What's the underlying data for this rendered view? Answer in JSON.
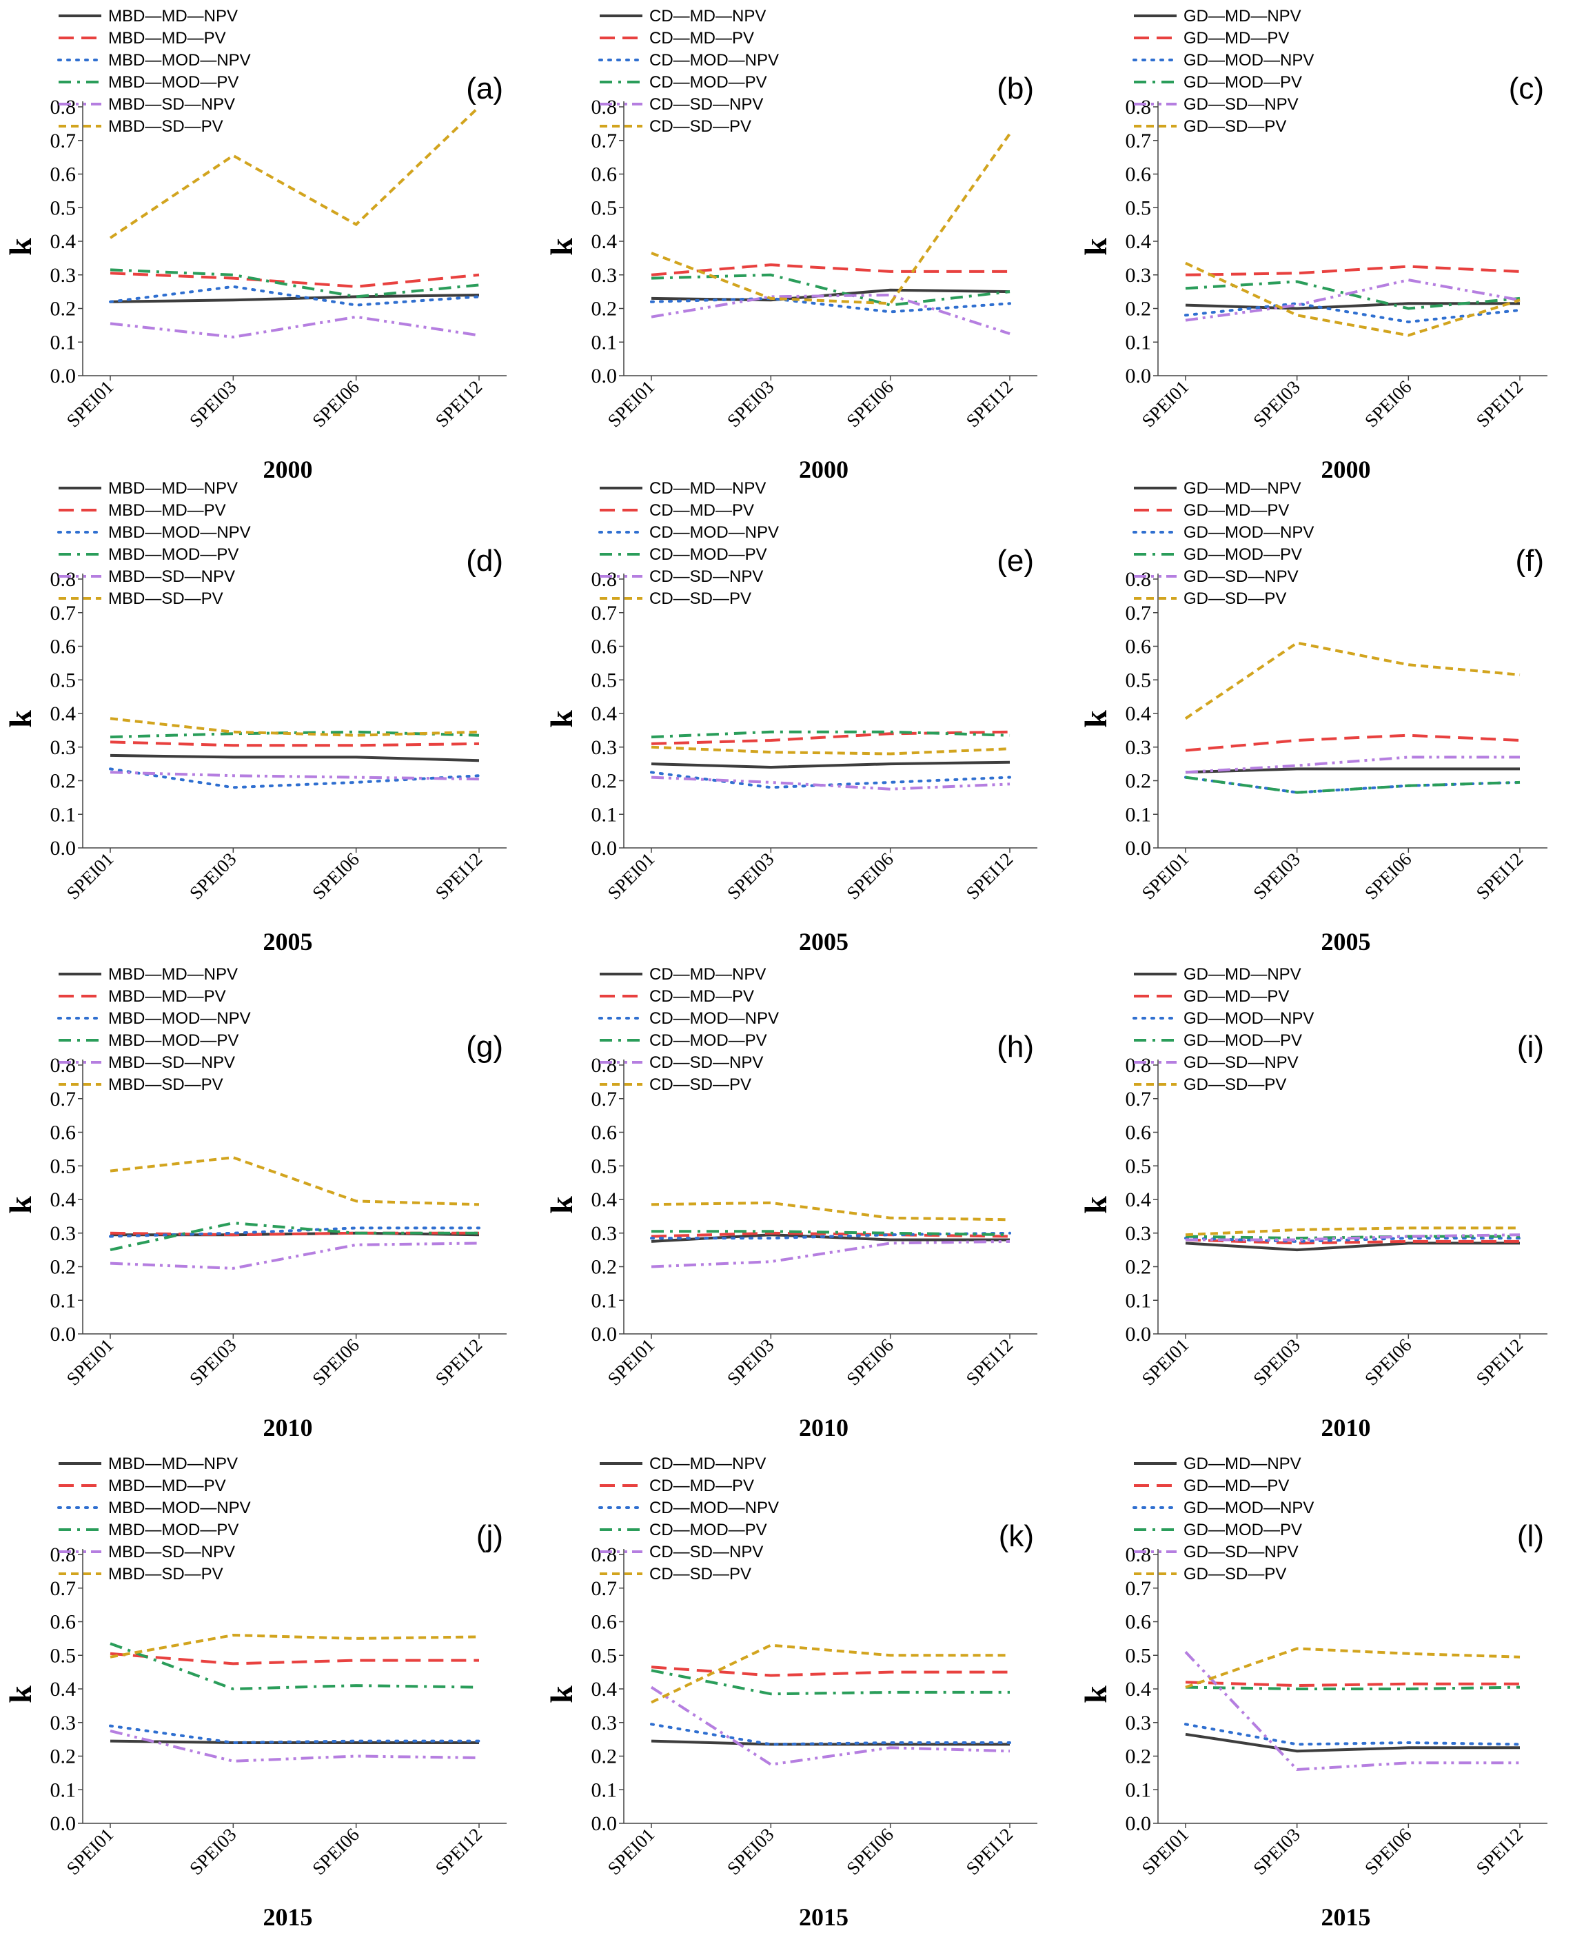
{
  "series_styles": [
    {
      "key": "MD-NPV",
      "color": "#3d3d3d",
      "dash": "solid"
    },
    {
      "key": "MD-PV",
      "color": "#e8413f",
      "dash": "longdash"
    },
    {
      "key": "MOD-NPV",
      "color": "#2f6fd0",
      "dash": "dot"
    },
    {
      "key": "MOD-PV",
      "color": "#2a9d5a",
      "dash": "dashdot"
    },
    {
      "key": "SD-NPV",
      "color": "#b57ee0",
      "dash": "dashdotdot"
    },
    {
      "key": "SD-PV",
      "color": "#d2a41e",
      "dash": "shortdash"
    }
  ],
  "chart_data": [
    {
      "id": "a",
      "type": "line",
      "panel_label": "(a)",
      "year": "2000",
      "ylabel": "k",
      "categories": [
        "SPEI01",
        "SPEI03",
        "SPEI06",
        "SPEI12"
      ],
      "yticks": [
        "0.0",
        "0.1",
        "0.2",
        "0.3",
        "0.4",
        "0.5",
        "0.6",
        "0.7",
        "0.8"
      ],
      "ylim": [
        0,
        0.8
      ],
      "series": [
        {
          "name": "MBD—MD—NPV",
          "values": [
            0.22,
            0.225,
            0.235,
            0.24
          ]
        },
        {
          "name": "MBD—MD—PV",
          "values": [
            0.305,
            0.29,
            0.265,
            0.3
          ]
        },
        {
          "name": "MBD—MOD—NPV",
          "values": [
            0.22,
            0.265,
            0.21,
            0.235
          ]
        },
        {
          "name": "MBD—MOD—PV",
          "values": [
            0.315,
            0.3,
            0.235,
            0.27
          ]
        },
        {
          "name": "MBD—SD—NPV",
          "values": [
            0.155,
            0.115,
            0.175,
            0.12
          ]
        },
        {
          "name": "MBD—SD—PV",
          "values": [
            0.41,
            0.655,
            0.45,
            0.8
          ]
        }
      ]
    },
    {
      "id": "b",
      "type": "line",
      "panel_label": "(b)",
      "year": "2000",
      "ylabel": "k",
      "categories": [
        "SPEI01",
        "SPEI03",
        "SPEI06",
        "SPEI12"
      ],
      "yticks": [
        "0.0",
        "0.1",
        "0.2",
        "0.3",
        "0.4",
        "0.5",
        "0.6",
        "0.7",
        "0.8"
      ],
      "ylim": [
        0,
        0.8
      ],
      "series": [
        {
          "name": "CD—MD—NPV",
          "values": [
            0.23,
            0.225,
            0.255,
            0.25
          ]
        },
        {
          "name": "CD—MD—PV",
          "values": [
            0.3,
            0.33,
            0.31,
            0.31
          ]
        },
        {
          "name": "CD—MOD—NPV",
          "values": [
            0.22,
            0.23,
            0.19,
            0.215
          ]
        },
        {
          "name": "CD—MOD—PV",
          "values": [
            0.29,
            0.3,
            0.21,
            0.25
          ]
        },
        {
          "name": "CD—SD—NPV",
          "values": [
            0.175,
            0.235,
            0.24,
            0.125
          ]
        },
        {
          "name": "CD—SD—PV",
          "values": [
            0.365,
            0.23,
            0.215,
            0.72
          ]
        }
      ]
    },
    {
      "id": "c",
      "type": "line",
      "panel_label": "(c)",
      "year": "2000",
      "ylabel": "k",
      "categories": [
        "SPEI01",
        "SPEI03",
        "SPEI06",
        "SPEI12"
      ],
      "yticks": [
        "0.0",
        "0.1",
        "0.2",
        "0.3",
        "0.4",
        "0.5",
        "0.6",
        "0.7",
        "0.8"
      ],
      "ylim": [
        0,
        0.8
      ],
      "series": [
        {
          "name": "GD—MD—NPV",
          "values": [
            0.21,
            0.2,
            0.215,
            0.215
          ]
        },
        {
          "name": "GD—MD—PV",
          "values": [
            0.3,
            0.305,
            0.325,
            0.31
          ]
        },
        {
          "name": "GD—MOD—NPV",
          "values": [
            0.18,
            0.215,
            0.16,
            0.195
          ]
        },
        {
          "name": "GD—MOD—PV",
          "values": [
            0.26,
            0.28,
            0.2,
            0.23
          ]
        },
        {
          "name": "GD—SD—NPV",
          "values": [
            0.165,
            0.21,
            0.285,
            0.225
          ]
        },
        {
          "name": "GD—SD—PV",
          "values": [
            0.335,
            0.18,
            0.12,
            0.225
          ]
        }
      ]
    },
    {
      "id": "d",
      "type": "line",
      "panel_label": "(d)",
      "year": "2005",
      "ylabel": "k",
      "categories": [
        "SPEI01",
        "SPEI03",
        "SPEI06",
        "SPEI12"
      ],
      "yticks": [
        "0.0",
        "0.1",
        "0.2",
        "0.3",
        "0.4",
        "0.5",
        "0.6",
        "0.7",
        "0.8"
      ],
      "ylim": [
        0,
        0.8
      ],
      "series": [
        {
          "name": "MBD—MD—NPV",
          "values": [
            0.275,
            0.27,
            0.27,
            0.26
          ]
        },
        {
          "name": "MBD—MD—PV",
          "values": [
            0.315,
            0.305,
            0.305,
            0.31
          ]
        },
        {
          "name": "MBD—MOD—NPV",
          "values": [
            0.235,
            0.18,
            0.195,
            0.215
          ]
        },
        {
          "name": "MBD—MOD—PV",
          "values": [
            0.33,
            0.34,
            0.345,
            0.335
          ]
        },
        {
          "name": "MBD—SD—NPV",
          "values": [
            0.225,
            0.215,
            0.21,
            0.205
          ]
        },
        {
          "name": "MBD—SD—PV",
          "values": [
            0.385,
            0.345,
            0.335,
            0.345
          ]
        }
      ]
    },
    {
      "id": "e",
      "type": "line",
      "panel_label": "(e)",
      "year": "2005",
      "ylabel": "k",
      "categories": [
        "SPEI01",
        "SPEI03",
        "SPEI06",
        "SPEI12"
      ],
      "yticks": [
        "0.0",
        "0.1",
        "0.2",
        "0.3",
        "0.4",
        "0.5",
        "0.6",
        "0.7",
        "0.8"
      ],
      "ylim": [
        0,
        0.8
      ],
      "series": [
        {
          "name": "CD—MD—NPV",
          "values": [
            0.25,
            0.24,
            0.25,
            0.255
          ]
        },
        {
          "name": "CD—MD—PV",
          "values": [
            0.31,
            0.32,
            0.34,
            0.345
          ]
        },
        {
          "name": "CD—MOD—NPV",
          "values": [
            0.225,
            0.18,
            0.195,
            0.21
          ]
        },
        {
          "name": "CD—MOD—PV",
          "values": [
            0.33,
            0.345,
            0.345,
            0.335
          ]
        },
        {
          "name": "CD—SD—NPV",
          "values": [
            0.21,
            0.195,
            0.175,
            0.19
          ]
        },
        {
          "name": "CD—SD—PV",
          "values": [
            0.3,
            0.285,
            0.28,
            0.295
          ]
        }
      ]
    },
    {
      "id": "f",
      "type": "line",
      "panel_label": "(f)",
      "year": "2005",
      "ylabel": "k",
      "categories": [
        "SPEI01",
        "SPEI03",
        "SPEI06",
        "SPEI12"
      ],
      "yticks": [
        "0.0",
        "0.1",
        "0.2",
        "0.3",
        "0.4",
        "0.5",
        "0.6",
        "0.7",
        "0.8"
      ],
      "ylim": [
        0,
        0.8
      ],
      "series": [
        {
          "name": "GD—MD—NPV",
          "values": [
            0.225,
            0.235,
            0.235,
            0.235
          ]
        },
        {
          "name": "GD—MD—PV",
          "values": [
            0.29,
            0.32,
            0.335,
            0.32
          ]
        },
        {
          "name": "GD—MOD—NPV",
          "values": [
            0.21,
            0.165,
            0.185,
            0.195
          ]
        },
        {
          "name": "GD—MOD—PV",
          "values": [
            0.21,
            0.165,
            0.185,
            0.195
          ]
        },
        {
          "name": "GD—SD—NPV",
          "values": [
            0.225,
            0.245,
            0.27,
            0.27
          ]
        },
        {
          "name": "GD—SD—PV",
          "values": [
            0.385,
            0.61,
            0.545,
            0.515
          ]
        }
      ]
    },
    {
      "id": "g",
      "type": "line",
      "panel_label": "(g)",
      "year": "2010",
      "ylabel": "k",
      "categories": [
        "SPEI01",
        "SPEI03",
        "SPEI06",
        "SPEI12"
      ],
      "yticks": [
        "0.0",
        "0.1",
        "0.2",
        "0.3",
        "0.4",
        "0.5",
        "0.6",
        "0.7",
        "0.8"
      ],
      "ylim": [
        0,
        0.8
      ],
      "series": [
        {
          "name": "MBD—MD—NPV",
          "values": [
            0.295,
            0.295,
            0.3,
            0.295
          ]
        },
        {
          "name": "MBD—MD—PV",
          "values": [
            0.3,
            0.295,
            0.3,
            0.3
          ]
        },
        {
          "name": "MBD—MOD—NPV",
          "values": [
            0.29,
            0.3,
            0.315,
            0.315
          ]
        },
        {
          "name": "MBD—MOD—PV",
          "values": [
            0.25,
            0.33,
            0.3,
            0.3
          ]
        },
        {
          "name": "MBD—SD—NPV",
          "values": [
            0.21,
            0.195,
            0.265,
            0.27
          ]
        },
        {
          "name": "MBD—SD—PV",
          "values": [
            0.485,
            0.525,
            0.395,
            0.385
          ]
        }
      ]
    },
    {
      "id": "h",
      "type": "line",
      "panel_label": "(h)",
      "year": "2010",
      "ylabel": "k",
      "categories": [
        "SPEI01",
        "SPEI03",
        "SPEI06",
        "SPEI12"
      ],
      "yticks": [
        "0.0",
        "0.1",
        "0.2",
        "0.3",
        "0.4",
        "0.5",
        "0.6",
        "0.7",
        "0.8"
      ],
      "ylim": [
        0,
        0.8
      ],
      "series": [
        {
          "name": "CD—MD—NPV",
          "values": [
            0.275,
            0.295,
            0.28,
            0.28
          ]
        },
        {
          "name": "CD—MD—PV",
          "values": [
            0.29,
            0.3,
            0.295,
            0.29
          ]
        },
        {
          "name": "CD—MOD—NPV",
          "values": [
            0.285,
            0.285,
            0.295,
            0.3
          ]
        },
        {
          "name": "CD—MOD—PV",
          "values": [
            0.305,
            0.305,
            0.3,
            0.295
          ]
        },
        {
          "name": "CD—SD—NPV",
          "values": [
            0.2,
            0.215,
            0.27,
            0.275
          ]
        },
        {
          "name": "CD—SD—PV",
          "values": [
            0.385,
            0.39,
            0.345,
            0.34
          ]
        }
      ]
    },
    {
      "id": "i",
      "type": "line",
      "panel_label": "(i)",
      "year": "2010",
      "ylabel": "k",
      "categories": [
        "SPEI01",
        "SPEI03",
        "SPEI06",
        "SPEI12"
      ],
      "yticks": [
        "0.0",
        "0.1",
        "0.2",
        "0.3",
        "0.4",
        "0.5",
        "0.6",
        "0.7",
        "0.8"
      ],
      "ylim": [
        0,
        0.8
      ],
      "series": [
        {
          "name": "GD—MD—NPV",
          "values": [
            0.27,
            0.25,
            0.27,
            0.27
          ]
        },
        {
          "name": "GD—MD—PV",
          "values": [
            0.28,
            0.27,
            0.275,
            0.275
          ]
        },
        {
          "name": "GD—MOD—NPV",
          "values": [
            0.285,
            0.275,
            0.285,
            0.285
          ]
        },
        {
          "name": "GD—MOD—PV",
          "values": [
            0.29,
            0.285,
            0.29,
            0.29
          ]
        },
        {
          "name": "GD—SD—NPV",
          "values": [
            0.28,
            0.28,
            0.29,
            0.295
          ]
        },
        {
          "name": "GD—SD—PV",
          "values": [
            0.295,
            0.31,
            0.315,
            0.315
          ]
        }
      ]
    },
    {
      "id": "j",
      "type": "line",
      "panel_label": "(j)",
      "year": "2015",
      "ylabel": "k",
      "categories": [
        "SPEI01",
        "SPEI03",
        "SPEI06",
        "SPEI12"
      ],
      "yticks": [
        "0.0",
        "0.1",
        "0.2",
        "0.3",
        "0.4",
        "0.5",
        "0.6",
        "0.7",
        "0.8"
      ],
      "ylim": [
        0,
        0.8
      ],
      "series": [
        {
          "name": "MBD—MD—NPV",
          "values": [
            0.245,
            0.24,
            0.24,
            0.24
          ]
        },
        {
          "name": "MBD—MD—PV",
          "values": [
            0.505,
            0.475,
            0.485,
            0.485
          ]
        },
        {
          "name": "MBD—MOD—NPV",
          "values": [
            0.29,
            0.24,
            0.245,
            0.245
          ]
        },
        {
          "name": "MBD—MOD—PV",
          "values": [
            0.535,
            0.4,
            0.41,
            0.405
          ]
        },
        {
          "name": "MBD—SD—NPV",
          "values": [
            0.275,
            0.185,
            0.2,
            0.195
          ]
        },
        {
          "name": "MBD—SD—PV",
          "values": [
            0.495,
            0.56,
            0.55,
            0.555
          ]
        }
      ]
    },
    {
      "id": "k",
      "type": "line",
      "panel_label": "(k)",
      "year": "2015",
      "ylabel": "k",
      "categories": [
        "SPEI01",
        "SPEI03",
        "SPEI06",
        "SPEI12"
      ],
      "yticks": [
        "0.0",
        "0.1",
        "0.2",
        "0.3",
        "0.4",
        "0.5",
        "0.6",
        "0.7",
        "0.8"
      ],
      "ylim": [
        0,
        0.8
      ],
      "series": [
        {
          "name": "CD—MD—NPV",
          "values": [
            0.245,
            0.235,
            0.235,
            0.235
          ]
        },
        {
          "name": "CD—MD—PV",
          "values": [
            0.465,
            0.44,
            0.45,
            0.45
          ]
        },
        {
          "name": "CD—MOD—NPV",
          "values": [
            0.295,
            0.235,
            0.24,
            0.24
          ]
        },
        {
          "name": "CD—MOD—PV",
          "values": [
            0.455,
            0.385,
            0.39,
            0.39
          ]
        },
        {
          "name": "CD—SD—NPV",
          "values": [
            0.405,
            0.175,
            0.225,
            0.215
          ]
        },
        {
          "name": "CD—SD—PV",
          "values": [
            0.36,
            0.53,
            0.5,
            0.5
          ]
        }
      ]
    },
    {
      "id": "l",
      "type": "line",
      "panel_label": "(l)",
      "year": "2015",
      "ylabel": "k",
      "categories": [
        "SPEI01",
        "SPEI03",
        "SPEI06",
        "SPEI12"
      ],
      "yticks": [
        "0.0",
        "0.1",
        "0.2",
        "0.3",
        "0.4",
        "0.5",
        "0.6",
        "0.7",
        "0.8"
      ],
      "ylim": [
        0,
        0.8
      ],
      "series": [
        {
          "name": "GD—MD—NPV",
          "values": [
            0.265,
            0.215,
            0.225,
            0.225
          ]
        },
        {
          "name": "GD—MD—PV",
          "values": [
            0.42,
            0.41,
            0.415,
            0.415
          ]
        },
        {
          "name": "GD—MOD—NPV",
          "values": [
            0.295,
            0.235,
            0.24,
            0.235
          ]
        },
        {
          "name": "GD—MOD—PV",
          "values": [
            0.405,
            0.4,
            0.4,
            0.405
          ]
        },
        {
          "name": "GD—SD—NPV",
          "values": [
            0.51,
            0.16,
            0.18,
            0.18
          ]
        },
        {
          "name": "GD—SD—PV",
          "values": [
            0.405,
            0.52,
            0.505,
            0.495
          ]
        }
      ]
    }
  ]
}
